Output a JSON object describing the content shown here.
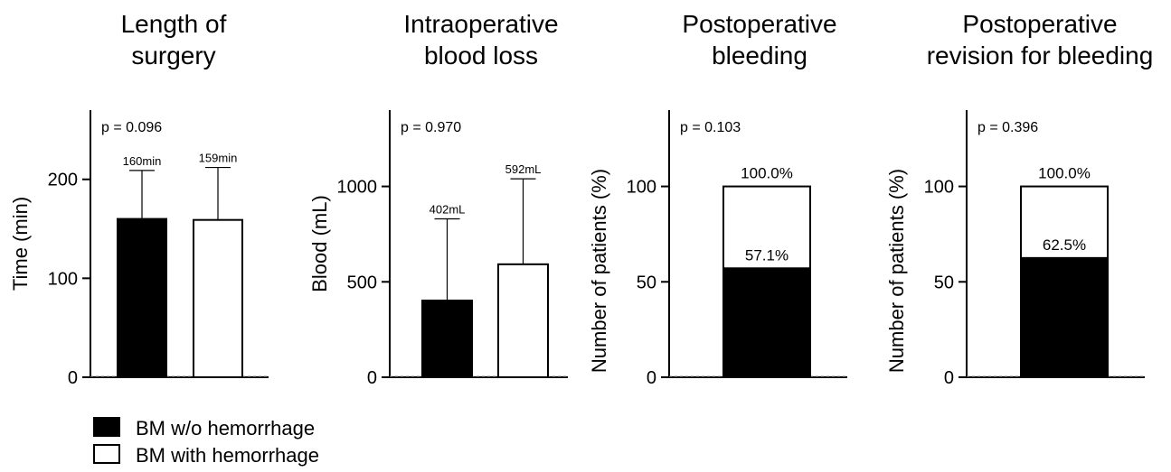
{
  "chart_data": [
    {
      "type": "bar",
      "title_lines": [
        "Length of",
        "surgery"
      ],
      "ylabel": "Time (min)",
      "ylim": [
        0,
        270
      ],
      "yticks": [
        "0",
        "100",
        "200"
      ],
      "pvalue": "p = 0.096",
      "categories": [
        "BM w/o hemorrhage",
        "BM with hemorrhage"
      ],
      "values": [
        160,
        159
      ],
      "error_upper": [
        209,
        212
      ],
      "data_labels": [
        "160min",
        "159min"
      ]
    },
    {
      "type": "bar",
      "title_lines": [
        "Intraoperative",
        "blood loss"
      ],
      "ylabel": "Blood (mL)",
      "ylim": [
        0,
        1400
      ],
      "yticks": [
        "0",
        "500",
        "1000"
      ],
      "pvalue": "p = 0.970",
      "categories": [
        "BM w/o hemorrhage",
        "BM with hemorrhage"
      ],
      "values": [
        402,
        592
      ],
      "error_upper": [
        830,
        1040
      ],
      "data_labels": [
        "402mL",
        "592mL"
      ]
    },
    {
      "type": "bar",
      "stacked": true,
      "title_lines": [
        "Postoperative",
        "bleeding"
      ],
      "ylabel": "Number of patients (%)",
      "ylim": [
        0,
        140
      ],
      "yticks": [
        "0",
        "50",
        "100"
      ],
      "pvalue": "p = 0.103",
      "series": [
        {
          "name": "BM w/o hemorrhage",
          "value": 57.1
        },
        {
          "name": "BM with hemorrhage",
          "value": 100
        }
      ],
      "data_labels": [
        "57.1%",
        "100.0%"
      ]
    },
    {
      "type": "bar",
      "stacked": true,
      "title_lines": [
        "Postoperative",
        "revision for bleeding"
      ],
      "ylabel": "Number of patients (%)",
      "ylim": [
        0,
        140
      ],
      "yticks": [
        "0",
        "50",
        "100"
      ],
      "pvalue": "p = 0.396",
      "series": [
        {
          "name": "BM w/o hemorrhage",
          "value": 62.5
        },
        {
          "name": "BM with hemorrhage",
          "value": 100
        }
      ],
      "data_labels": [
        "62.5%",
        "100.0%"
      ]
    }
  ],
  "legend": {
    "placement": "bottom-left",
    "items": [
      {
        "label": "BM w/o hemorrhage",
        "fill": "#000000"
      },
      {
        "label": "BM with hemorrhage",
        "fill": "#ffffff"
      }
    ]
  },
  "colors": {
    "filled": "#000000",
    "open": "#ffffff",
    "stroke": "#000000"
  }
}
